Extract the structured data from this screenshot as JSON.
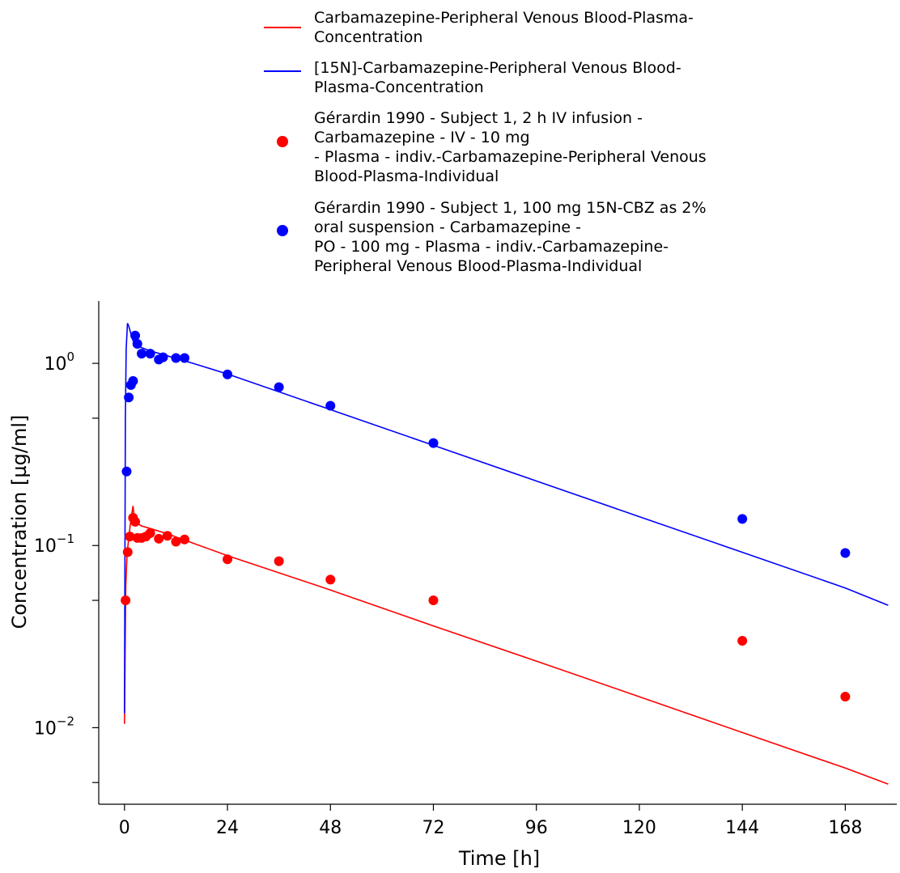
{
  "legend": {
    "entries": [
      {
        "label": "Carbamazepine-Peripheral Venous Blood-Plasma-\nConcentration",
        "kind": "line",
        "color": "#ff0000"
      },
      {
        "label": "[15N]-Carbamazepine-Peripheral Venous Blood-\nPlasma-Concentration",
        "kind": "line",
        "color": "#0000ff"
      },
      {
        "label": "Gérardin 1990 - Subject 1, 2 h IV infusion -\nCarbamazepine - IV - 10 mg\n- Plasma - indiv.-Carbamazepine-Peripheral Venous\nBlood-Plasma-Individual",
        "kind": "marker",
        "color": "#ff0000"
      },
      {
        "label": "Gérardin 1990 - Subject 1, 100 mg 15N-CBZ as 2%\noral suspension - Carbamazepine -\nPO - 100 mg - Plasma - indiv.-Carbamazepine-\nPeripheral Venous Blood-Plasma-Individual",
        "kind": "marker",
        "color": "#0000ff"
      }
    ]
  },
  "chart_data": {
    "type": "line",
    "xlabel": "Time [h]",
    "ylabel": "Concentration [µg/ml]",
    "xlim": [
      -6,
      180
    ],
    "ylim": [
      0.0038,
      2.2
    ],
    "y_scale": "log",
    "x_ticks": [
      0,
      24,
      48,
      72,
      96,
      120,
      144,
      168
    ],
    "y_ticks_major": [
      {
        "value": 0.01,
        "base": "10",
        "exp": "−2"
      },
      {
        "value": 0.1,
        "base": "10",
        "exp": "−1"
      },
      {
        "value": 1,
        "base": "10",
        "exp": "0"
      }
    ],
    "grid": false,
    "legend_position": "top",
    "series": [
      {
        "name": "Carbamazepine-Peripheral Venous Blood-Plasma-Concentration",
        "kind": "line",
        "color": "#ff0000",
        "x": [
          0,
          0.3,
          0.6,
          1.0,
          1.5,
          2.0,
          2.3,
          3.0,
          4.0,
          6.0,
          10.0,
          16.0,
          24.0,
          48.0,
          72.0,
          96.0,
          120.0,
          144.0,
          168.0,
          178.0
        ],
        "y": [
          0.0105,
          0.06,
          0.09,
          0.11,
          0.14,
          0.165,
          0.14,
          0.132,
          0.128,
          0.124,
          0.116,
          0.103,
          0.088,
          0.057,
          0.0362,
          0.0232,
          0.0148,
          0.0094,
          0.006,
          0.0049
        ]
      },
      {
        "name": "[15N]-Carbamazepine-Peripheral Venous Blood-Plasma-Concentration",
        "kind": "line",
        "color": "#0000ff",
        "x": [
          0,
          0.2,
          0.4,
          0.7,
          1.0,
          1.5,
          2.0,
          3.0,
          4.0,
          6.0,
          10.0,
          16.0,
          24.0,
          48.0,
          72.0,
          96.0,
          120.0,
          144.0,
          168.0,
          178.0
        ],
        "y": [
          0.012,
          0.5,
          1.2,
          1.66,
          1.6,
          1.45,
          1.33,
          1.25,
          1.22,
          1.17,
          1.1,
          1.0,
          0.875,
          0.557,
          0.355,
          0.226,
          0.144,
          0.0918,
          0.0585,
          0.047
        ]
      },
      {
        "name": "Gérardin 1990 - Subject 1, 2 h IV infusion - Carbamazepine - IV - 10 mg - Plasma - indiv.-Carbamazepine-Peripheral Venous Blood-Plasma-Individual",
        "kind": "scatter",
        "color": "#ff0000",
        "x": [
          0.25,
          0.75,
          1.25,
          2.0,
          2.5,
          3.0,
          4.0,
          5.0,
          6.0,
          8.0,
          10.0,
          12.0,
          14.0,
          24.0,
          36.0,
          48.0,
          72.0,
          144.0,
          168.0
        ],
        "y": [
          0.05,
          0.092,
          0.112,
          0.142,
          0.135,
          0.11,
          0.11,
          0.112,
          0.117,
          0.109,
          0.113,
          0.105,
          0.108,
          0.084,
          0.082,
          0.065,
          0.05,
          0.03,
          0.0148
        ]
      },
      {
        "name": "Gérardin 1990 - Subject 1, 100 mg 15N-CBZ as 2% oral suspension - Carbamazepine - PO - 100 mg - Plasma - indiv.-Carbamazepine-Peripheral Venous Blood-Plasma-Individual",
        "kind": "scatter",
        "color": "#0000ff",
        "x": [
          0.5,
          1.0,
          1.5,
          2.0,
          2.5,
          3.0,
          4.0,
          6.0,
          8.0,
          9.0,
          12.0,
          14.0,
          24.0,
          36.0,
          48.0,
          72.0,
          144.0,
          168.0
        ],
        "y": [
          0.255,
          0.65,
          0.76,
          0.8,
          1.42,
          1.28,
          1.13,
          1.13,
          1.05,
          1.08,
          1.07,
          1.07,
          0.87,
          0.74,
          0.585,
          0.365,
          0.14,
          0.091
        ]
      }
    ]
  }
}
